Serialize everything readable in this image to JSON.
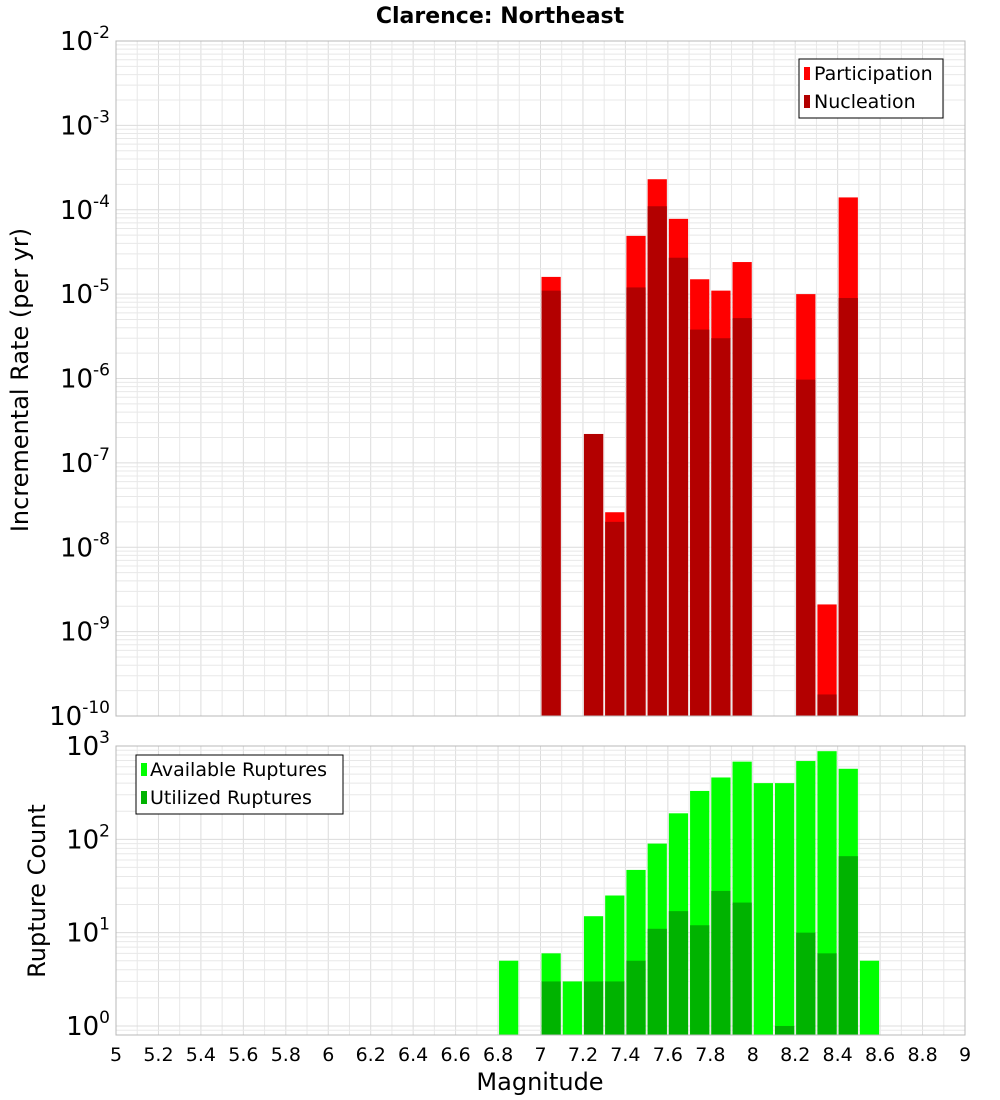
{
  "chart_data": [
    {
      "type": "bar",
      "title": "Clarence: Northeast",
      "ylabel": "Incremental Rate (per yr)",
      "xlabel": "",
      "x_range": [
        5,
        9
      ],
      "y_scale": "log",
      "y_range": [
        1e-10,
        0.01
      ],
      "y_ticks": [
        {
          "base": "10",
          "exp": "-10"
        },
        {
          "base": "10",
          "exp": "-9"
        },
        {
          "base": "10",
          "exp": "-8"
        },
        {
          "base": "10",
          "exp": "-7"
        },
        {
          "base": "10",
          "exp": "-6"
        },
        {
          "base": "10",
          "exp": "-5"
        },
        {
          "base": "10",
          "exp": "-4"
        },
        {
          "base": "10",
          "exp": "-3"
        },
        {
          "base": "10",
          "exp": "-2"
        }
      ],
      "grid": true,
      "legend_position": "top-right",
      "series": [
        {
          "name": "Participation",
          "color": "#ff0000",
          "x": [
            7.05,
            7.25,
            7.35,
            7.45,
            7.55,
            7.65,
            7.75,
            7.85,
            7.95,
            8.25,
            8.35,
            8.45
          ],
          "values": [
            1.6e-05,
            2.2e-07,
            2.6e-08,
            4.9e-05,
            0.00023,
            7.8e-05,
            1.5e-05,
            1.1e-05,
            2.4e-05,
            1e-05,
            2.1e-09,
            0.00014
          ]
        },
        {
          "name": "Nucleation",
          "color": "#b30000",
          "x": [
            7.05,
            7.25,
            7.35,
            7.45,
            7.55,
            7.65,
            7.75,
            7.85,
            7.95,
            8.25,
            8.35,
            8.45
          ],
          "values": [
            1.1e-05,
            2.2e-07,
            2e-08,
            1.2e-05,
            0.00011,
            2.7e-05,
            3.8e-06,
            3e-06,
            5.2e-06,
            9.7e-07,
            1.8e-10,
            9e-06
          ]
        }
      ]
    },
    {
      "type": "bar",
      "title": "",
      "ylabel": "Rupture Count",
      "xlabel": "Magnitude",
      "x_range": [
        5,
        9
      ],
      "x_ticks": [
        "5",
        "5.2",
        "5.4",
        "5.6",
        "5.8",
        "6",
        "6.2",
        "6.4",
        "6.6",
        "6.8",
        "7",
        "7.2",
        "7.4",
        "7.6",
        "7.8",
        "8",
        "8.2",
        "8.4",
        "8.6",
        "8.8",
        "9"
      ],
      "y_scale": "log",
      "y_range": [
        0.8,
        1000
      ],
      "y_ticks": [
        {
          "base": "10",
          "exp": "0"
        },
        {
          "base": "10",
          "exp": "1"
        },
        {
          "base": "10",
          "exp": "2"
        },
        {
          "base": "10",
          "exp": "3"
        }
      ],
      "grid": true,
      "legend_position": "top-left",
      "series": [
        {
          "name": "Available Ruptures",
          "color": "#00ff00",
          "x": [
            6.85,
            7.05,
            7.15,
            7.25,
            7.35,
            7.45,
            7.55,
            7.65,
            7.75,
            7.85,
            7.95,
            8.05,
            8.15,
            8.25,
            8.35,
            8.45,
            8.55
          ],
          "values": [
            5,
            6,
            3,
            15,
            25,
            47,
            90,
            190,
            330,
            460,
            680,
            400,
            400,
            690,
            880,
            570,
            5
          ]
        },
        {
          "name": "Utilized Ruptures",
          "color": "#00b300",
          "x": [
            7.05,
            7.25,
            7.35,
            7.45,
            7.55,
            7.65,
            7.75,
            7.85,
            7.95,
            8.15,
            8.25,
            8.35,
            8.45
          ],
          "values": [
            3,
            3,
            3,
            5,
            11,
            17,
            12,
            28,
            21,
            1,
            10,
            6,
            66
          ]
        }
      ]
    }
  ]
}
